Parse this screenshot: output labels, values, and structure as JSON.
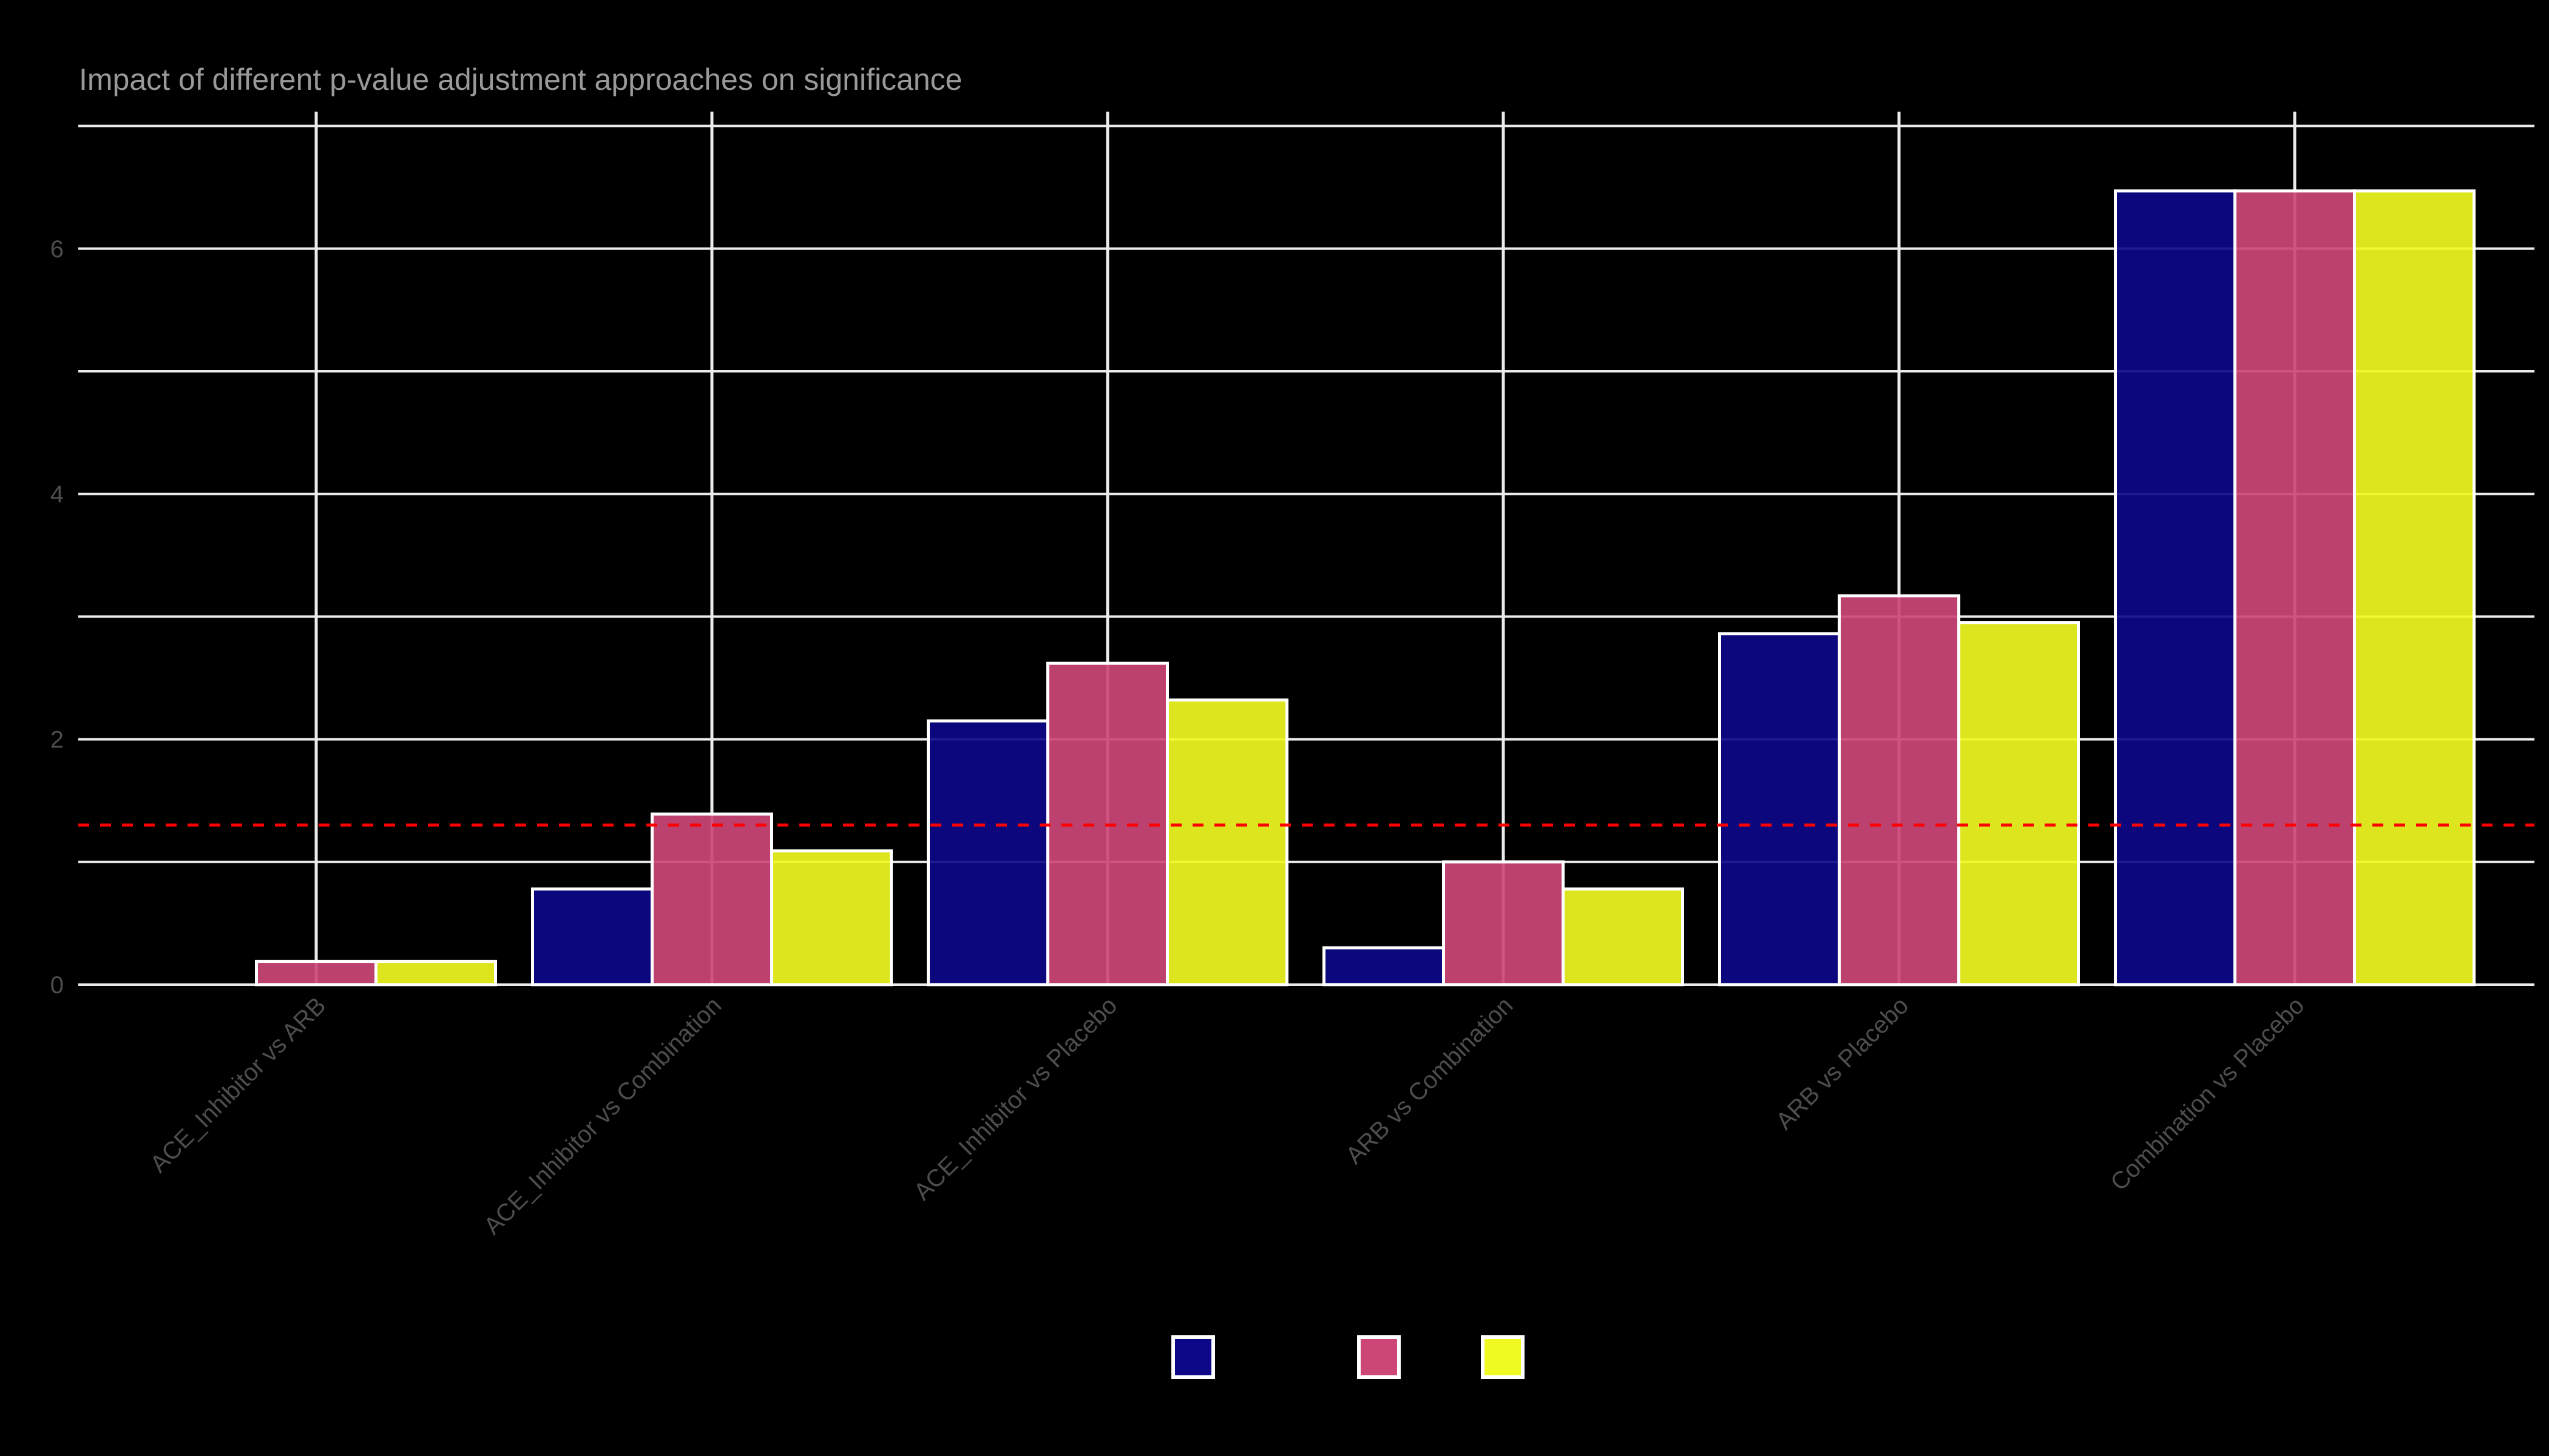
{
  "chart_data": {
    "type": "bar",
    "title": "Impact of different p-value adjustment approaches on significance",
    "xlabel": "",
    "ylabel": "",
    "categories": [
      "ACE_Inhibitor vs ARB",
      "ACE_Inhibitor vs Combination",
      "ACE_Inhibitor vs Placebo",
      "ARB vs Combination",
      "ARB vs Placebo",
      "Combination vs Placebo"
    ],
    "series": [
      {
        "name": "",
        "color": "#0d0887",
        "values": [
          0.0,
          0.78,
          2.15,
          0.3,
          2.86,
          6.47
        ]
      },
      {
        "name": "",
        "color": "#cc4778",
        "values": [
          0.19,
          1.39,
          2.62,
          1.0,
          3.17,
          6.47
        ]
      },
      {
        "name": "",
        "color": "#f0f921",
        "values": [
          0.19,
          1.09,
          2.32,
          0.78,
          2.95,
          6.47
        ]
      }
    ],
    "ylim": [
      0,
      7.1
    ],
    "yticks": [
      0,
      2,
      4,
      6
    ],
    "y_minor_gridlines": [
      1,
      3,
      5,
      7
    ],
    "reference_line": {
      "y": 1.301,
      "color": "#ff0000",
      "style": "dashed",
      "meaning": "-log10(0.05)"
    },
    "grid": true,
    "legend_position": "bottom",
    "background": "#000000",
    "gridline_color": "#ebebeb",
    "bar_border_color": "#ffffff"
  },
  "legend": {
    "items": [
      {
        "label": "",
        "color": "#0d0887"
      },
      {
        "label": "",
        "color": "#cc4778"
      },
      {
        "label": "",
        "color": "#f0f921"
      }
    ]
  }
}
